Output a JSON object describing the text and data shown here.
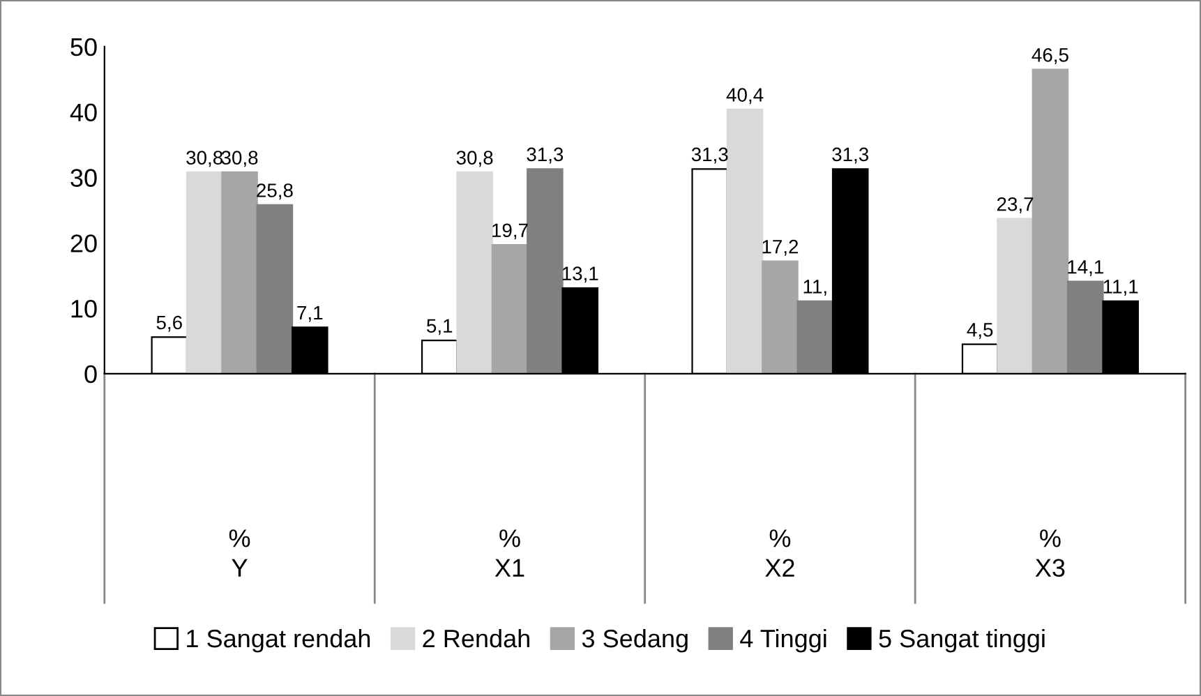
{
  "chart_data": {
    "type": "bar",
    "categories": [
      "%",
      "%",
      "%",
      "%"
    ],
    "annotations": [
      "Y",
      "X1",
      "X2",
      "X3"
    ],
    "series": [
      {
        "name": "1 Sangat rendah",
        "color": "#ffffff",
        "values": [
          5.6,
          5.1,
          31.3,
          4.5
        ],
        "value_labels": [
          "5,6",
          "5,1",
          "31,3",
          "4,5"
        ]
      },
      {
        "name": "2 Rendah",
        "color": "#d9d9d9",
        "values": [
          30.8,
          30.8,
          40.4,
          23.7
        ],
        "value_labels": [
          "30,8",
          "30,8",
          "40,4",
          "23,7"
        ]
      },
      {
        "name": "3 Sedang",
        "color": "#a6a6a6",
        "values": [
          30.8,
          19.7,
          17.2,
          46.5
        ],
        "value_labels": [
          "30,8",
          "19,7",
          "17,2",
          "46,5"
        ]
      },
      {
        "name": "4 Tinggi",
        "color": "#808080",
        "values": [
          25.8,
          31.3,
          11.1,
          14.1
        ],
        "value_labels": [
          "25,8",
          "31,3",
          "11,",
          "14,1"
        ]
      },
      {
        "name": "5 Sangat tinggi",
        "color": "#000000",
        "values": [
          7.1,
          13.1,
          31.3,
          11.1
        ],
        "value_labels": [
          "7,1",
          "13,1",
          "31,3",
          "11,1"
        ]
      }
    ],
    "ylim": [
      0,
      50
    ],
    "yticks": [
      0,
      10,
      20,
      30,
      40,
      50
    ],
    "grid": false,
    "legend": "bottom"
  }
}
